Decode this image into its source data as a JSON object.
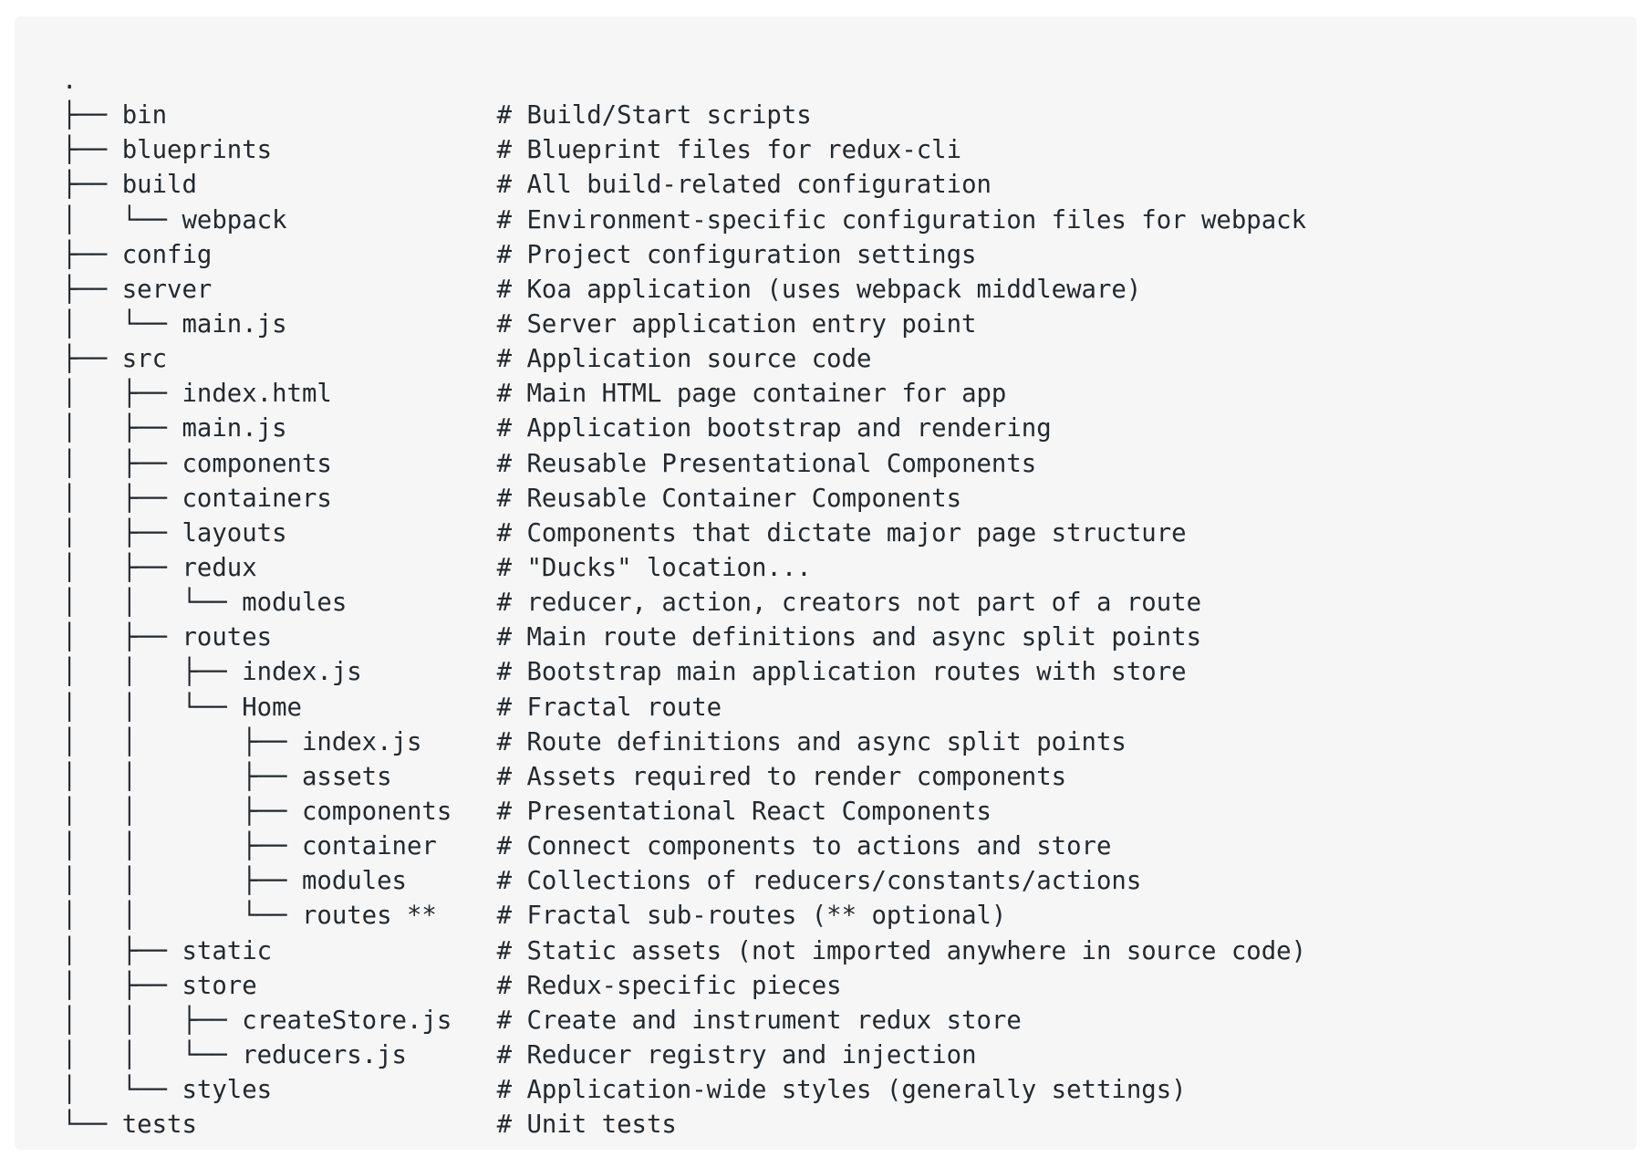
{
  "lines": [
    {
      "path": ".",
      "comment": ""
    },
    {
      "path": "├── bin",
      "comment": "# Build/Start scripts"
    },
    {
      "path": "├── blueprints",
      "comment": "# Blueprint files for redux-cli"
    },
    {
      "path": "├── build",
      "comment": "# All build-related configuration"
    },
    {
      "path": "│   └── webpack",
      "comment": "# Environment-specific configuration files for webpack"
    },
    {
      "path": "├── config",
      "comment": "# Project configuration settings"
    },
    {
      "path": "├── server",
      "comment": "# Koa application (uses webpack middleware)"
    },
    {
      "path": "│   └── main.js",
      "comment": "# Server application entry point"
    },
    {
      "path": "├── src",
      "comment": "# Application source code"
    },
    {
      "path": "│   ├── index.html",
      "comment": "# Main HTML page container for app"
    },
    {
      "path": "│   ├── main.js",
      "comment": "# Application bootstrap and rendering"
    },
    {
      "path": "│   ├── components",
      "comment": "# Reusable Presentational Components"
    },
    {
      "path": "│   ├── containers",
      "comment": "# Reusable Container Components"
    },
    {
      "path": "│   ├── layouts",
      "comment": "# Components that dictate major page structure"
    },
    {
      "path": "│   ├── redux",
      "comment": "# \"Ducks\" location..."
    },
    {
      "path": "│   │   └── modules",
      "comment": "# reducer, action, creators not part of a route"
    },
    {
      "path": "│   ├── routes",
      "comment": "# Main route definitions and async split points"
    },
    {
      "path": "│   │   ├── index.js",
      "comment": "# Bootstrap main application routes with store"
    },
    {
      "path": "│   │   └── Home",
      "comment": "# Fractal route"
    },
    {
      "path": "│   │       ├── index.js",
      "comment": "# Route definitions and async split points"
    },
    {
      "path": "│   │       ├── assets",
      "comment": "# Assets required to render components"
    },
    {
      "path": "│   │       ├── components",
      "comment": "# Presentational React Components"
    },
    {
      "path": "│   │       ├── container",
      "comment": "# Connect components to actions and store"
    },
    {
      "path": "│   │       ├── modules",
      "comment": "# Collections of reducers/constants/actions"
    },
    {
      "path": "│   │       └── routes **",
      "comment": "# Fractal sub-routes (** optional)"
    },
    {
      "path": "│   ├── static",
      "comment": "# Static assets (not imported anywhere in source code)"
    },
    {
      "path": "│   ├── store",
      "comment": "# Redux-specific pieces"
    },
    {
      "path": "│   │   ├── createStore.js",
      "comment": "# Create and instrument redux store"
    },
    {
      "path": "│   │   └── reducers.js",
      "comment": "# Reducer registry and injection"
    },
    {
      "path": "│   └── styles",
      "comment": "# Application-wide styles (generally settings)"
    },
    {
      "path": "└── tests",
      "comment": "# Unit tests"
    }
  ]
}
